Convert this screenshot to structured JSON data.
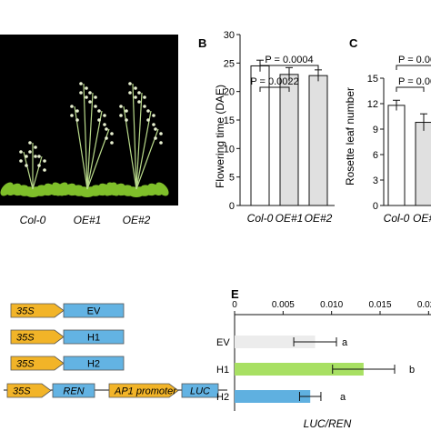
{
  "panels": {
    "a": {
      "genotype_labels": [
        "Col-0",
        "OE#1",
        "OE#2"
      ],
      "background_color": "#000000",
      "plant_color": "#7fbf2a"
    },
    "b": {
      "letter": "B"
    },
    "c": {
      "letter": "C"
    },
    "e": {
      "letter": "E",
      "significance_letters": [
        "a",
        "b",
        "a"
      ]
    },
    "d": {
      "constructs": [
        {
          "promoter": "35S",
          "gene": "EV"
        },
        {
          "promoter": "35S",
          "gene": "H1"
        },
        {
          "promoter": "35S",
          "gene": "H2"
        }
      ],
      "reporter": {
        "promoter": "35S",
        "ren": "REN",
        "ap1": "AP1 promoter",
        "luc": "LUC"
      },
      "arrow_color": "#f2b428",
      "box_color": "#63b3e3"
    }
  },
  "chart_data": [
    {
      "id": "B",
      "type": "bar",
      "categories": [
        "Col-0",
        "OE#1",
        "OE#2"
      ],
      "values": [
        24.5,
        23.0,
        22.8
      ],
      "errors": [
        1.0,
        1.2,
        1.0
      ],
      "bar_fills": [
        "#ffffff",
        "#e0e0e0",
        "#e0e0e0"
      ],
      "ylabel": "Flowering time (DAE)",
      "ylim": [
        0,
        30
      ],
      "yticks": [
        0,
        5,
        10,
        15,
        20,
        25,
        30
      ],
      "comparisons": [
        {
          "from": 0,
          "to": 2,
          "label": "P = 0.0004"
        },
        {
          "from": 0,
          "to": 1,
          "label": "P = 0.0022"
        }
      ]
    },
    {
      "id": "C",
      "type": "bar",
      "categories": [
        "Col-0",
        "OE#"
      ],
      "values": [
        11.8,
        9.8
      ],
      "errors": [
        0.6,
        1.0
      ],
      "bar_fills": [
        "#ffffff",
        "#e0e0e0"
      ],
      "ylabel": "Rosette leaf number",
      "ylim": [
        0,
        15
      ],
      "yticks": [
        0,
        3,
        6,
        9,
        12,
        15
      ],
      "comparisons": [
        {
          "label": "P = 0.00"
        },
        {
          "label": "P = 0.00"
        }
      ]
    },
    {
      "id": "E",
      "type": "bar",
      "orientation": "horizontal",
      "categories": [
        "EV",
        "H1",
        "H2"
      ],
      "values": [
        0.0083,
        0.0133,
        0.0078
      ],
      "errors": [
        0.0022,
        0.0032,
        0.0011
      ],
      "bar_colors": [
        "#ececec",
        "#a8e063",
        "#5fb0e0"
      ],
      "xlabel": "LUC/REN",
      "xlim": [
        0,
        0.021
      ],
      "xticks": [
        "0",
        "0.005",
        "0.010",
        "0.015",
        "0.020"
      ],
      "xtick_values": [
        0,
        0.005,
        0.01,
        0.015,
        0.02
      ]
    }
  ]
}
